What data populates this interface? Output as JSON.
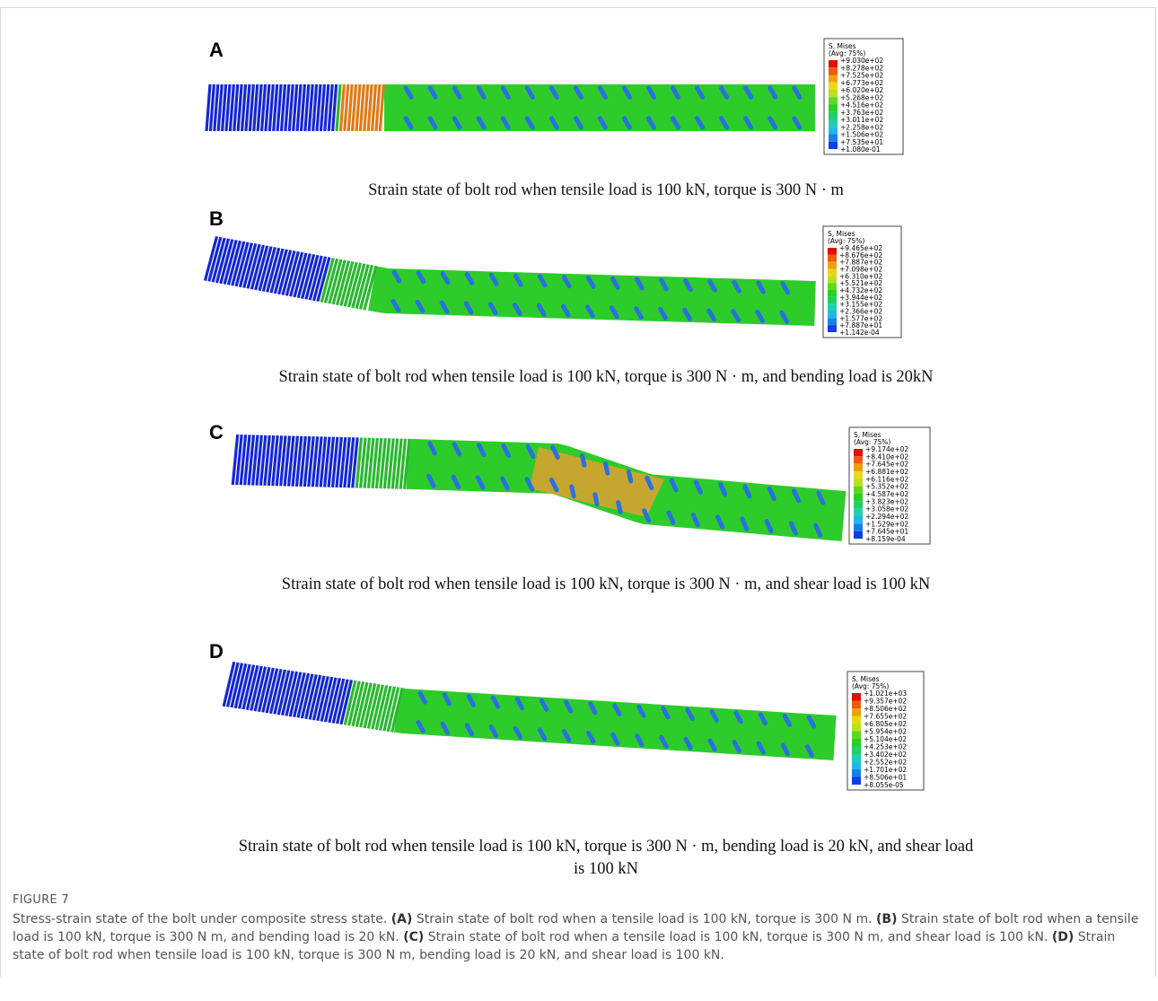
{
  "panels": [
    {
      "label": "A",
      "caption": "Strain state of bolt rod when tensile load is 100 kN, torque is 300 N · m",
      "legend": {
        "title": "S, Mises",
        "subtitle": "(Avg: 75%)",
        "values": [
          "+9.030e+02",
          "+8.278e+02",
          "+7.525e+02",
          "+6.773e+02",
          "+6.020e+02",
          "+5.268e+02",
          "+4.516e+02",
          "+3.763e+02",
          "+3.011e+02",
          "+2.258e+02",
          "+1.506e+02",
          "+7.535e+01",
          "+1.080e-01"
        ]
      }
    },
    {
      "label": "B",
      "caption": "Strain state of bolt rod when tensile load is 100 kN, torque is 300 N · m, and bending load is 20kN",
      "legend": {
        "title": "S, Mises",
        "subtitle": "(Avg: 75%)",
        "values": [
          "+9.465e+02",
          "+8.676e+02",
          "+7.887e+02",
          "+7.098e+02",
          "+6.310e+02",
          "+5.521e+02",
          "+4.732e+02",
          "+3.944e+02",
          "+3.155e+02",
          "+2.366e+02",
          "+1.577e+02",
          "+7.887e+01",
          "+1.142e-04"
        ]
      }
    },
    {
      "label": "C",
      "caption": "Strain state of bolt rod when tensile load is 100 kN, torque is 300 N · m, and shear load is 100 kN",
      "legend": {
        "title": "S, Mises",
        "subtitle": "(Avg: 75%)",
        "values": [
          "+9.174e+02",
          "+8.410e+02",
          "+7.645e+02",
          "+6.881e+02",
          "+6.116e+02",
          "+5.352e+02",
          "+4.587e+02",
          "+3.823e+02",
          "+3.058e+02",
          "+2.294e+02",
          "+1.529e+02",
          "+7.645e+01",
          "+8.159e-04"
        ]
      }
    },
    {
      "label": "D",
      "caption": "Strain state of bolt rod when tensile load is 100 kN, torque is 300 N · m, bending load is 20 kN, and shear load is 100 kN",
      "legend": {
        "title": "S, Mises",
        "subtitle": "(Avg: 75%)",
        "values": [
          "+1.021e+03",
          "+9.357e+02",
          "+8.506e+02",
          "+7.655e+02",
          "+6.805e+02",
          "+5.954e+02",
          "+5.104e+02",
          "+4.253e+02",
          "+3.402e+02",
          "+2.552e+02",
          "+1.701e+02",
          "+8.506e+01",
          "+8.055e-05"
        ]
      }
    }
  ],
  "figure": {
    "label": "FIGURE 7",
    "caption": {
      "intro": "Stress-strain state of the bolt under composite stress state.",
      "items": [
        {
          "tag": "(A)",
          "text": "Strain state of bolt rod when a tensile load is 100 kN, torque is 300 N m."
        },
        {
          "tag": "(B)",
          "text": "Strain state of bolt rod when a tensile load is 100 kN, torque is 300 N m, and bending load is 20 kN."
        },
        {
          "tag": "(C)",
          "text": "Strain state of bolt rod when a tensile load is 100 kN, torque is 300 N m, and shear load is 100 kN."
        },
        {
          "tag": "(D)",
          "text": "Strain state of bolt rod when tensile load is 100 kN, torque is 300 N m, bending load is 20 kN, and shear load is 100 kN."
        }
      ]
    }
  }
}
